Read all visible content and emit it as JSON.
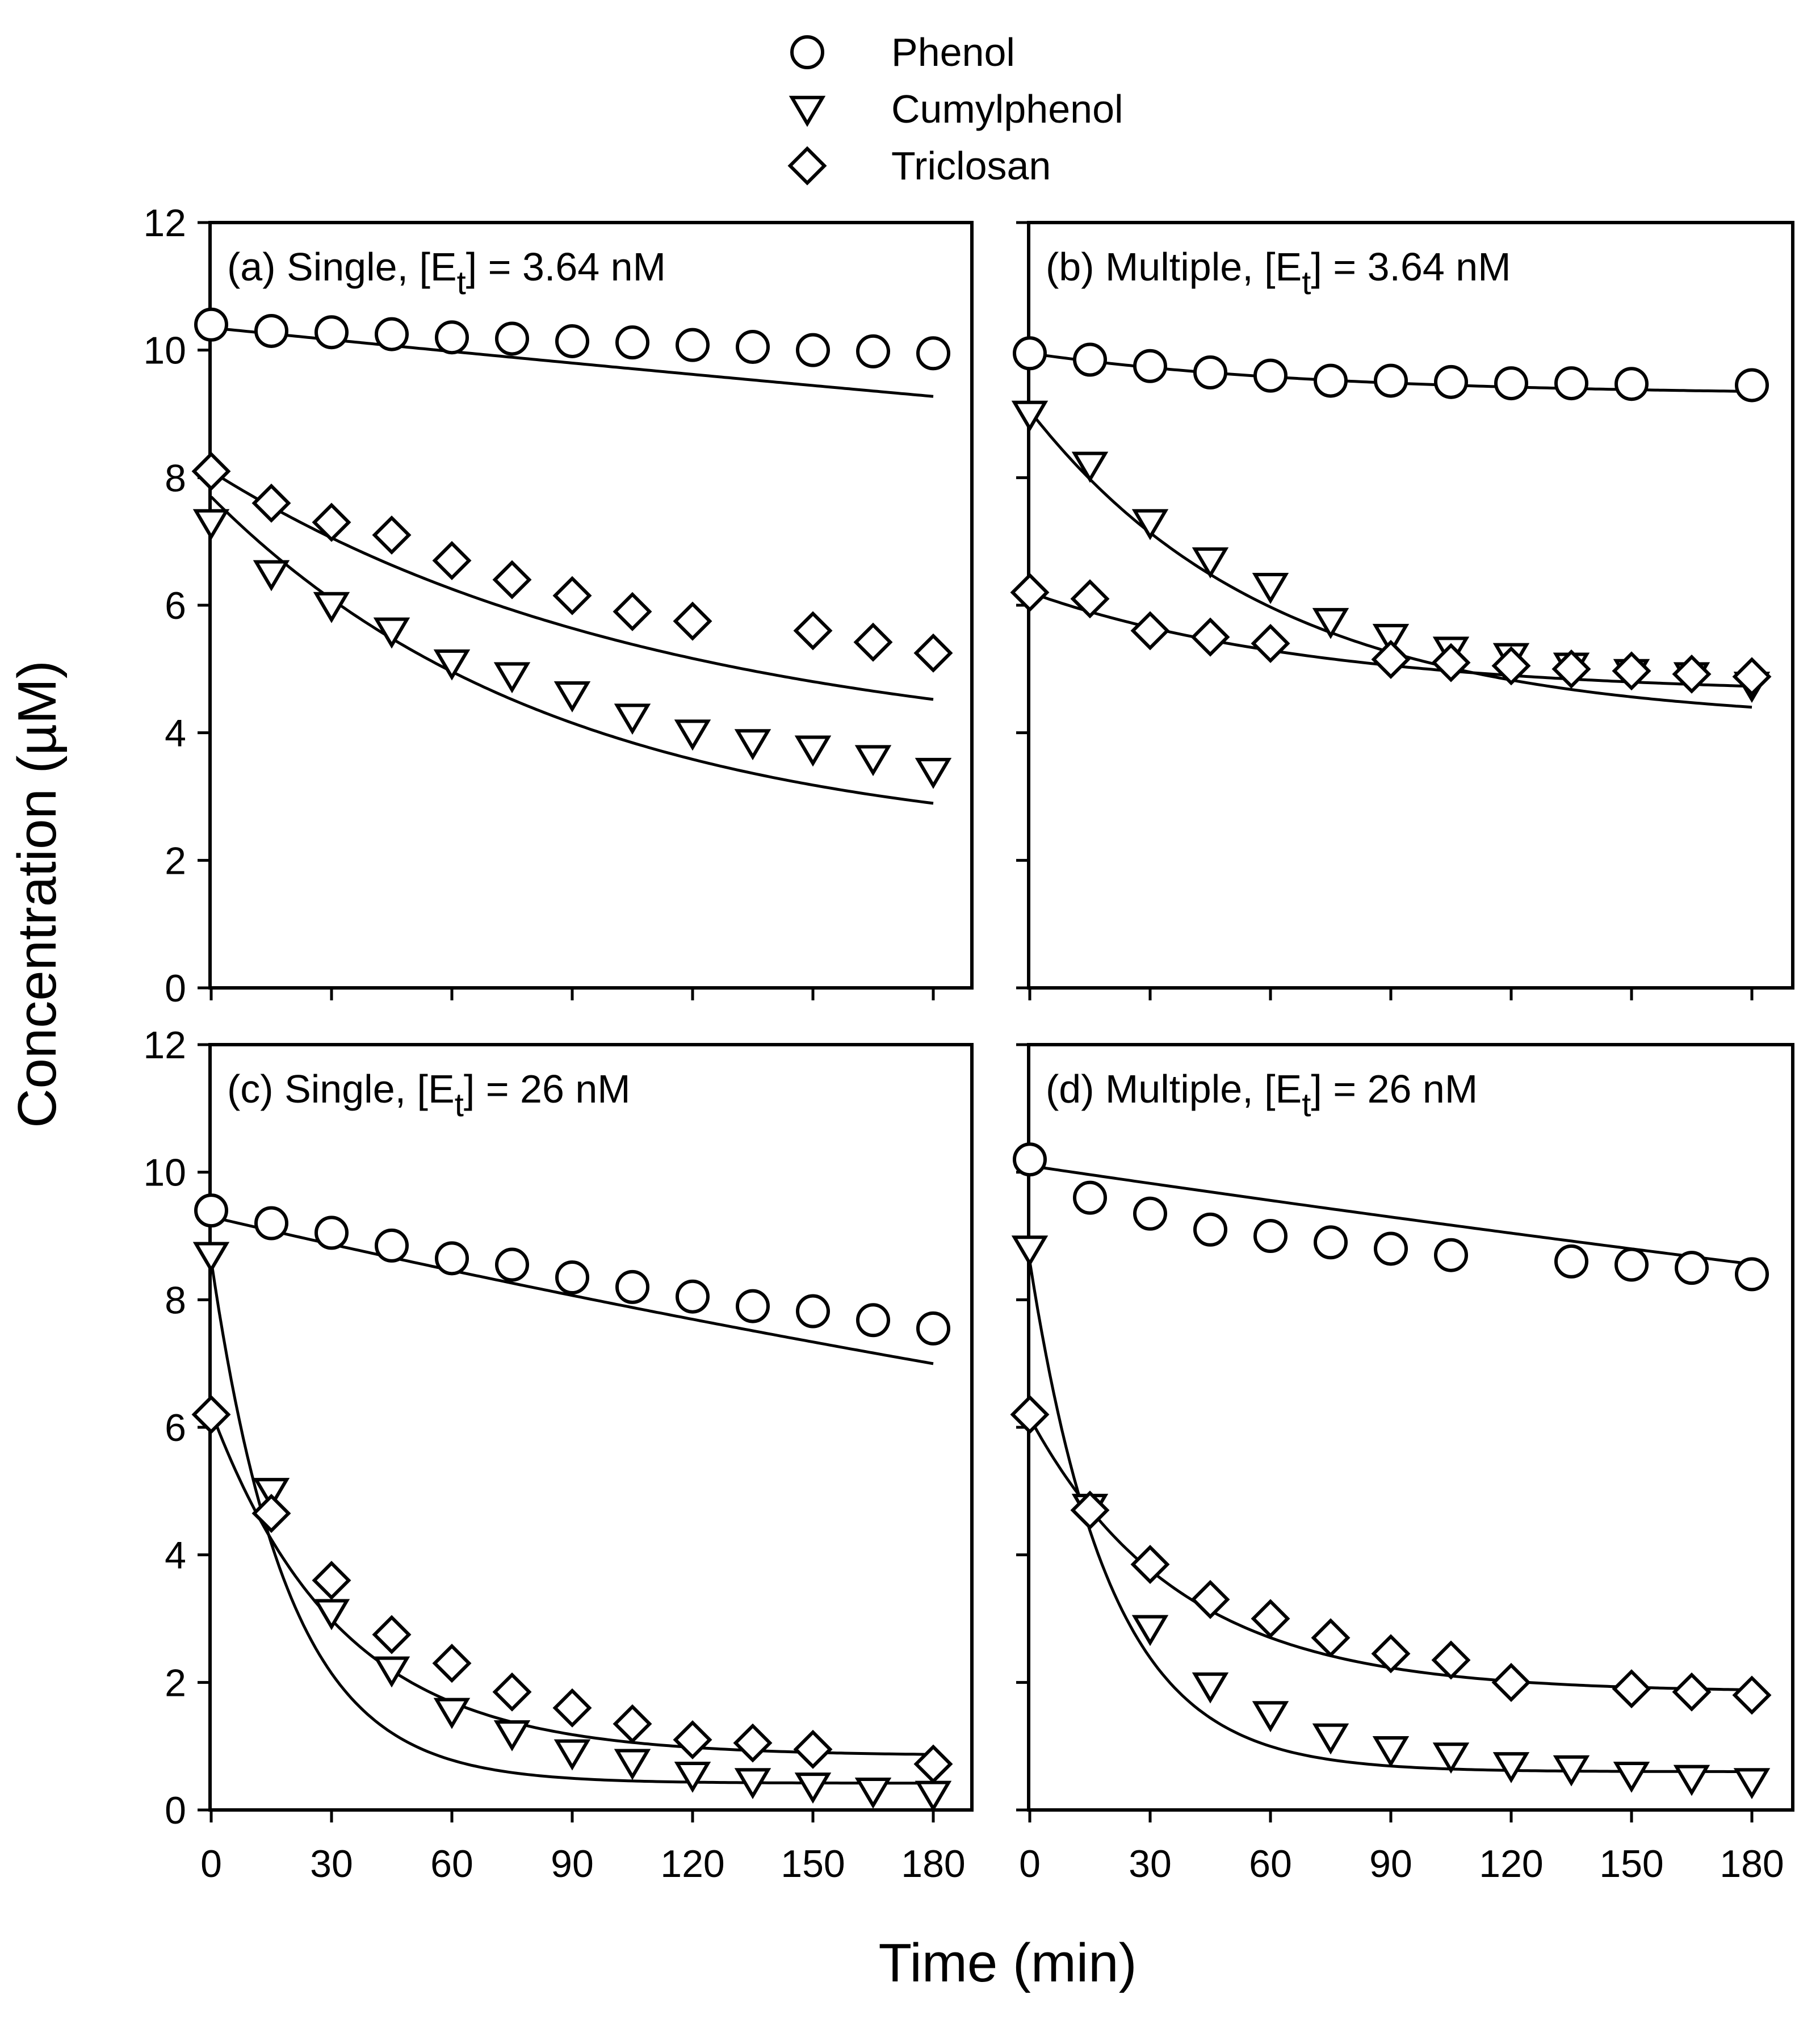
{
  "chart_data": {
    "type": "scatter",
    "xlabel": "Time (min)",
    "ylabel": "Concentration (µM)",
    "xlim": [
      0,
      180
    ],
    "ylim": [
      0,
      12
    ],
    "xticks": [
      0,
      30,
      60,
      90,
      120,
      150,
      180
    ],
    "yticks": [
      0,
      2,
      4,
      6,
      8,
      10,
      12
    ],
    "legend": [
      {
        "name": "Phenol",
        "marker": "circle"
      },
      {
        "name": "Cumylphenol",
        "marker": "triangle-down"
      },
      {
        "name": "Triclosan",
        "marker": "diamond"
      }
    ],
    "panels": [
      {
        "id": "a",
        "title": {
          "prefix": "(a) Single, [E",
          "sub": "t",
          "suffix": "] = 3.64 nM"
        },
        "series": [
          {
            "name": "Phenol",
            "marker": "circle",
            "x": [
              0,
              15,
              30,
              45,
              60,
              75,
              90,
              105,
              120,
              135,
              150,
              165,
              180
            ],
            "y": [
              10.4,
              10.3,
              10.28,
              10.25,
              10.2,
              10.18,
              10.14,
              10.12,
              10.08,
              10.05,
              10.0,
              9.98,
              9.95
            ],
            "fit": {
              "a": 10.35,
              "k": 0.00061,
              "c": 0
            }
          },
          {
            "name": "Cumylphenol",
            "marker": "triangle-down",
            "x": [
              0,
              15,
              30,
              45,
              60,
              75,
              90,
              105,
              120,
              135,
              150,
              165,
              180
            ],
            "y": [
              7.3,
              6.5,
              6.0,
              5.6,
              5.1,
              4.9,
              4.6,
              4.25,
              4.0,
              3.85,
              3.75,
              3.6,
              3.4
            ],
            "fit": {
              "a": 5.5,
              "k": 0.0115,
              "c": 2.2
            }
          },
          {
            "name": "Triclosan",
            "marker": "diamond",
            "x": [
              0,
              15,
              30,
              45,
              60,
              75,
              90,
              105,
              120,
              150,
              165,
              180
            ],
            "y": [
              8.1,
              7.6,
              7.3,
              7.1,
              6.7,
              6.4,
              6.15,
              5.9,
              5.75,
              5.6,
              5.42,
              5.25
            ],
            "fit": {
              "a": 4.5,
              "k": 0.0088,
              "c": 3.6
            }
          }
        ]
      },
      {
        "id": "b",
        "title": {
          "prefix": "(b) Multiple, [E",
          "sub": "t",
          "suffix": "] = 3.64 nM"
        },
        "series": [
          {
            "name": "Phenol",
            "marker": "circle",
            "x": [
              0,
              15,
              30,
              45,
              60,
              75,
              90,
              105,
              120,
              135,
              150,
              180
            ],
            "y": [
              9.95,
              9.85,
              9.75,
              9.65,
              9.6,
              9.52,
              9.52,
              9.5,
              9.48,
              9.48,
              9.47,
              9.45
            ],
            "fit": {
              "a": 0.65,
              "k": 0.014,
              "c": 9.3
            }
          },
          {
            "name": "Cumylphenol",
            "marker": "triangle-down",
            "x": [
              0,
              15,
              30,
              45,
              60,
              75,
              90,
              105,
              120,
              135,
              150,
              165,
              180
            ],
            "y": [
              9.0,
              8.2,
              7.3,
              6.7,
              6.3,
              5.75,
              5.5,
              5.3,
              5.2,
              5.05,
              4.95,
              4.9,
              4.75
            ],
            "fit": {
              "a": 4.9,
              "k": 0.0165,
              "c": 4.15
            }
          },
          {
            "name": "Triclosan",
            "marker": "diamond",
            "x": [
              0,
              15,
              30,
              45,
              60,
              90,
              105,
              120,
              135,
              150,
              165,
              180
            ],
            "y": [
              6.2,
              6.1,
              5.6,
              5.5,
              5.4,
              5.15,
              5.1,
              5.05,
              5.0,
              4.97,
              4.92,
              4.88
            ],
            "fit": {
              "a": 1.6,
              "k": 0.014,
              "c": 4.6
            }
          }
        ]
      },
      {
        "id": "c",
        "title": {
          "prefix": "(c) Single, [E",
          "sub": "t",
          "suffix": "] = 26 nM"
        },
        "series": [
          {
            "name": "Phenol",
            "marker": "circle",
            "x": [
              0,
              15,
              30,
              45,
              60,
              75,
              90,
              105,
              120,
              135,
              150,
              165,
              180
            ],
            "y": [
              9.4,
              9.2,
              9.05,
              8.85,
              8.65,
              8.55,
              8.35,
              8.2,
              8.05,
              7.9,
              7.82,
              7.68,
              7.55
            ],
            "fit": {
              "a": 9.3,
              "k": 0.00158,
              "c": 0
            }
          },
          {
            "name": "Cumylphenol",
            "marker": "triangle-down",
            "x": [
              0,
              15,
              30,
              45,
              60,
              75,
              90,
              105,
              120,
              135,
              150,
              165,
              180
            ],
            "y": [
              8.7,
              5.0,
              3.1,
              2.2,
              1.55,
              1.2,
              0.9,
              0.75,
              0.55,
              0.45,
              0.38,
              0.3,
              0.25
            ],
            "fit": {
              "a": 8.2,
              "k": 0.052,
              "c": 0.42
            }
          },
          {
            "name": "Triclosan",
            "marker": "diamond",
            "x": [
              0,
              15,
              30,
              45,
              60,
              75,
              90,
              105,
              120,
              135,
              150,
              180
            ],
            "y": [
              6.2,
              4.65,
              3.6,
              2.75,
              2.3,
              1.85,
              1.6,
              1.35,
              1.1,
              1.05,
              0.95,
              0.72
            ],
            "fit": {
              "a": 5.4,
              "k": 0.031,
              "c": 0.85
            }
          }
        ]
      },
      {
        "id": "d",
        "title": {
          "prefix": "(d) Multiple, [E",
          "sub": "t",
          "suffix": "] = 26 nM"
        },
        "series": [
          {
            "name": "Phenol",
            "marker": "circle",
            "x": [
              0,
              15,
              30,
              45,
              60,
              75,
              90,
              105,
              135,
              150,
              165,
              180
            ],
            "y": [
              10.2,
              9.6,
              9.35,
              9.1,
              9.0,
              8.9,
              8.8,
              8.7,
              8.6,
              8.55,
              8.5,
              8.4
            ],
            "fit": {
              "a": 10.1,
              "k": 0.00092,
              "c": 0
            }
          },
          {
            "name": "Cumylphenol",
            "marker": "triangle-down",
            "x": [
              0,
              15,
              30,
              45,
              60,
              75,
              90,
              105,
              120,
              135,
              150,
              165,
              180
            ],
            "y": [
              8.8,
              4.75,
              2.85,
              1.95,
              1.5,
              1.15,
              0.95,
              0.85,
              0.7,
              0.65,
              0.55,
              0.5,
              0.45
            ],
            "fit": {
              "a": 8.0,
              "k": 0.05,
              "c": 0.6
            }
          },
          {
            "name": "Triclosan",
            "marker": "diamond",
            "x": [
              0,
              15,
              30,
              45,
              60,
              75,
              90,
              105,
              120,
              150,
              165,
              180
            ],
            "y": [
              6.2,
              4.7,
              3.85,
              3.3,
              3.0,
              2.7,
              2.45,
              2.35,
              2.0,
              1.9,
              1.85,
              1.8
            ],
            "fit": {
              "a": 4.3,
              "k": 0.027,
              "c": 1.85
            }
          }
        ]
      }
    ]
  }
}
